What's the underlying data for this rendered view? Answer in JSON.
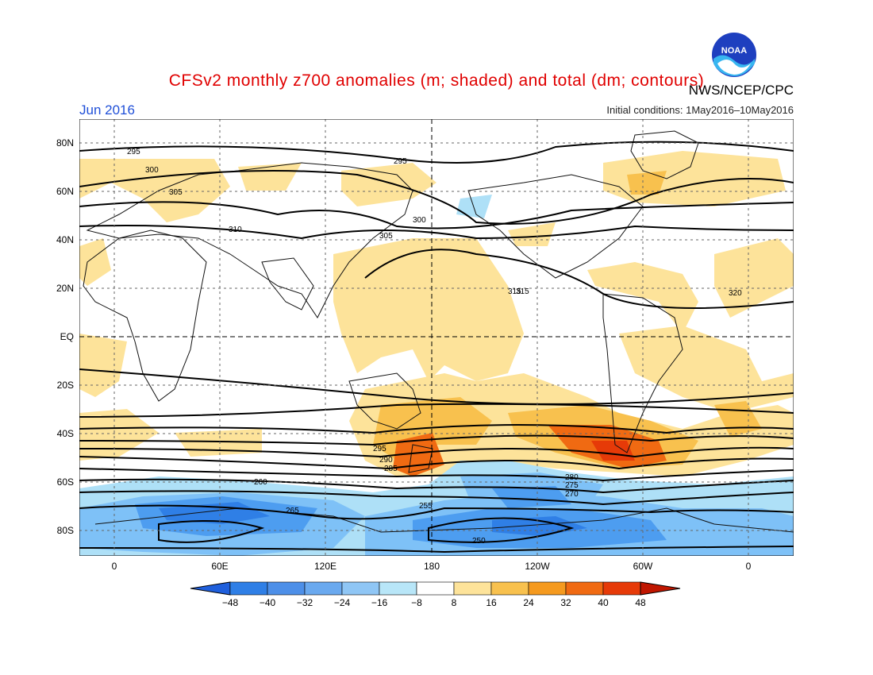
{
  "header": {
    "title": "CFSv2 monthly z700 anomalies (m; shaded) and total (dm; contours)",
    "period": "Jun 2016",
    "initial_conditions": "Initial conditions: 1May2016–10May2016",
    "agency": "NWS/NCEP/CPC",
    "logo_text": "NOAA"
  },
  "map": {
    "lat_labels": [
      "80N",
      "60N",
      "40N",
      "20N",
      "EQ",
      "20S",
      "40S",
      "60S",
      "80S"
    ],
    "lon_labels": [
      "0",
      "60E",
      "120E",
      "180",
      "120W",
      "60W",
      "0"
    ],
    "contour_labels": [
      "295",
      "300",
      "305",
      "310",
      "315",
      "320",
      "305",
      "300",
      "295",
      "290",
      "285",
      "280",
      "275",
      "270",
      "265",
      "260",
      "255",
      "250"
    ]
  },
  "legend": {
    "ticks": [
      "−48",
      "−40",
      "−32",
      "−24",
      "−16",
      "−8",
      "8",
      "16",
      "24",
      "32",
      "40",
      "48"
    ],
    "colors": [
      "#1f5fdc",
      "#2f7fe6",
      "#4d9df0",
      "#7ec1f7",
      "#aee0f7",
      "#ffffff",
      "#fde39a",
      "#f8c14e",
      "#f59a1f",
      "#f06a12",
      "#e63a08",
      "#c01600"
    ]
  }
}
